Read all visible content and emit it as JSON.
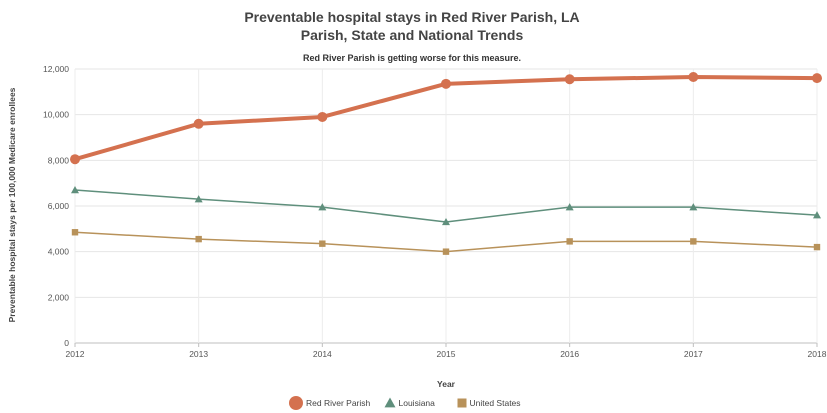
{
  "chart_data": {
    "type": "line",
    "title_line1": "Preventable hospital stays in Red River Parish, LA",
    "title_line2": "Parish, State and National Trends",
    "subtitle": "Red River Parish is getting worse for this measure.",
    "xlabel": "Year",
    "ylabel": "Preventable hospital stays per 100,000 Medicare enrollees",
    "x": [
      "2012",
      "2013",
      "2014",
      "2015",
      "2016",
      "2017",
      "2018"
    ],
    "y_ticks": [
      "0",
      "2,000",
      "4,000",
      "6,000",
      "8,000",
      "10,000",
      "12,000"
    ],
    "ylim": [
      0,
      12000
    ],
    "grid": "horizontal",
    "legend_position": "bottom-center",
    "series": [
      {
        "name": "Red River Parish",
        "marker": "circle",
        "color": "#d4714f",
        "values": [
          8050,
          9600,
          9900,
          11350,
          11550,
          11650,
          11600
        ]
      },
      {
        "name": "Louisiana",
        "marker": "triangle",
        "color": "#5f8f7c",
        "values": [
          6700,
          6300,
          5950,
          5300,
          5950,
          5950,
          5600
        ]
      },
      {
        "name": "United States",
        "marker": "square",
        "color": "#b8925a",
        "values": [
          4850,
          4550,
          4350,
          4000,
          4450,
          4450,
          4200
        ]
      }
    ]
  }
}
